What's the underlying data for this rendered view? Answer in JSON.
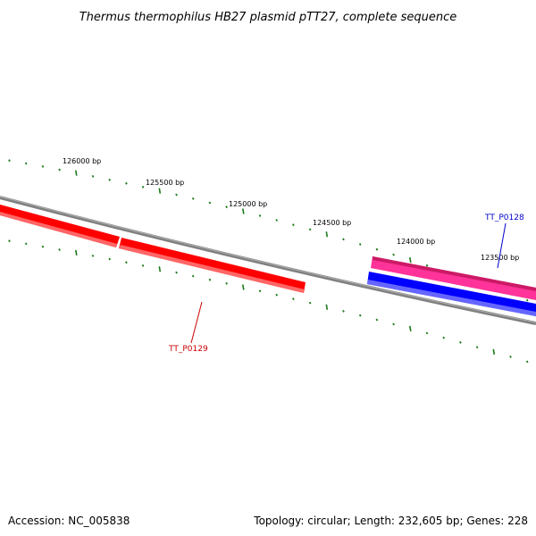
{
  "title": "Thermus thermophilus HB27 plasmid pTT27, complete sequence",
  "footer": {
    "accession": "Accession: NC_005838",
    "summary": "Topology: circular; Length: 232,605 bp; Genes: 228"
  },
  "ticks": [
    {
      "label": "126000 bp"
    },
    {
      "label": "125500 bp"
    },
    {
      "label": "125000 bp"
    },
    {
      "label": "124500 bp"
    },
    {
      "label": "124000 bp"
    },
    {
      "label": "123500 bp"
    }
  ],
  "genes": [
    {
      "label": "TT_P0128",
      "color": "#0000cc"
    },
    {
      "label": "TT_P0129",
      "color": "#cc0000"
    }
  ],
  "colors": {
    "backbone": "#808080",
    "tick": "#1a7a1a",
    "forward_gene": "#ff0000",
    "reverse_gene": "#0000ff",
    "reverse_gene_2": "#ff3399"
  }
}
